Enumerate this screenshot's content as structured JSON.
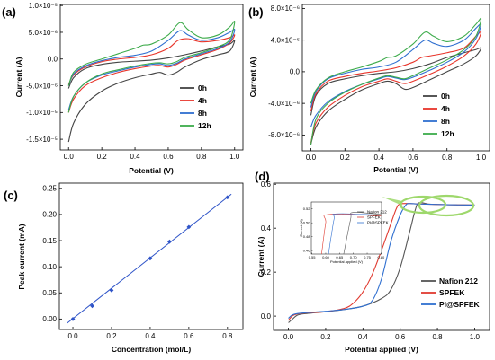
{
  "panels": [
    {
      "id": "a",
      "tag": "(a)",
      "chart_data": {
        "type": "line",
        "title": "",
        "xlabel": "Potential (V)",
        "ylabel": "Current (A)",
        "xlim": [
          -0.05,
          1.05
        ],
        "ylim": [
          -1.7e-05,
          1.02e-05
        ],
        "xticks": [
          0.0,
          0.2,
          0.4,
          0.6,
          0.8,
          1.0
        ],
        "xtick_labels": [
          "0.0",
          "0.2",
          "0.4",
          "0.6",
          "0.8",
          "1.0"
        ],
        "yticks": [
          -1.5e-05,
          -1e-05,
          -5e-06,
          0.0,
          5e-06,
          1e-05
        ],
        "ytick_labels": [
          "-1.5×10⁻⁵",
          "-1.0×10⁻⁵",
          "-5.0×10⁻⁶",
          "0.0",
          "5.0×10⁻⁶",
          "1.0×10⁻⁵"
        ],
        "legend_position": "lower-right",
        "series": [
          {
            "name": "0h",
            "color": "#444444",
            "x": [
              0.0,
              0.03,
              0.1,
              0.2,
              0.3,
              0.4,
              0.5,
              0.55,
              0.6,
              0.65,
              0.7,
              0.8,
              0.9,
              0.97,
              1.0,
              0.97,
              0.9,
              0.8,
              0.7,
              0.6,
              0.5,
              0.4,
              0.3,
              0.2,
              0.1,
              0.03,
              0.0
            ],
            "y": [
              -1.55e-05,
              -1.2e-05,
              -8.5e-06,
              -6e-06,
              -4.5e-06,
              -3.5e-06,
              -2.8e-06,
              -2.5e-06,
              -3e-06,
              -2.5e-06,
              -1.5e-06,
              -1e-07,
              8e-07,
              1.5e-06,
              3.5e-06,
              2.8e-06,
              2.3e-06,
              1.5e-06,
              8e-07,
              2e-07,
              -2e-07,
              -4e-07,
              -6e-07,
              -1e-06,
              -1.8e-06,
              -3.5e-06,
              -5.5e-06
            ]
          },
          {
            "name": "4h",
            "color": "#e8352b",
            "x": [
              0.0,
              0.03,
              0.1,
              0.2,
              0.3,
              0.4,
              0.5,
              0.55,
              0.6,
              0.65,
              0.7,
              0.8,
              0.9,
              0.97,
              1.0,
              0.97,
              0.9,
              0.8,
              0.72,
              0.66,
              0.6,
              0.5,
              0.4,
              0.3,
              0.2,
              0.1,
              0.03,
              0.0
            ],
            "y": [
              -1e-05,
              -7.5e-06,
              -5e-06,
              -3.5e-06,
              -2.5e-06,
              -1.8e-06,
              -1.3e-06,
              -1.2e-06,
              -1.5e-06,
              -1e-06,
              -2e-07,
              8e-07,
              1.8e-06,
              3e-06,
              4.5e-06,
              4e-06,
              3.5e-06,
              3.2e-06,
              3.8e-06,
              3.5e-06,
              2e-06,
              8e-07,
              3e-07,
              0.0,
              -5e-07,
              -1.5e-06,
              -3e-06,
              -4.8e-06
            ]
          },
          {
            "name": "8h",
            "color": "#2f6fd0",
            "x": [
              0.0,
              0.03,
              0.1,
              0.2,
              0.3,
              0.4,
              0.5,
              0.55,
              0.6,
              0.65,
              0.7,
              0.8,
              0.9,
              0.97,
              1.0,
              0.97,
              0.9,
              0.8,
              0.72,
              0.67,
              0.6,
              0.5,
              0.4,
              0.3,
              0.2,
              0.1,
              0.03,
              0.0
            ],
            "y": [
              -9.5e-06,
              -7e-06,
              -4.5e-06,
              -3e-06,
              -2.2e-06,
              -1.5e-06,
              -1e-06,
              -9e-07,
              -1.2e-06,
              -8e-07,
              0.0,
              1e-06,
              2e-06,
              3.2e-06,
              5.5e-06,
              5e-06,
              4e-06,
              3.5e-06,
              4.5e-06,
              5.3e-06,
              3.5e-06,
              1.5e-06,
              7e-07,
              3e-07,
              -3e-07,
              -1.3e-06,
              -2.8e-06,
              -5e-06
            ]
          },
          {
            "name": "12h",
            "color": "#3dab4b",
            "x": [
              0.0,
              0.03,
              0.1,
              0.2,
              0.3,
              0.4,
              0.5,
              0.55,
              0.6,
              0.65,
              0.7,
              0.8,
              0.9,
              0.97,
              1.0,
              0.97,
              0.9,
              0.8,
              0.72,
              0.67,
              0.6,
              0.5,
              0.45,
              0.4,
              0.3,
              0.2,
              0.1,
              0.03,
              0.0
            ],
            "y": [
              -1e-05,
              -7e-06,
              -4.5e-06,
              -2.8e-06,
              -2e-06,
              -1.3e-06,
              -8e-07,
              -7e-07,
              -9e-07,
              -5e-07,
              3e-07,
              1.2e-06,
              2.3e-06,
              3.6e-06,
              7e-06,
              6e-06,
              4.5e-06,
              4e-06,
              5.5e-06,
              6.8e-06,
              4.5e-06,
              2.8e-06,
              2.6e-06,
              2e-06,
              1e-06,
              0.0,
              -1e-06,
              -2.5e-06,
              -5e-06
            ]
          }
        ]
      }
    },
    {
      "id": "b",
      "tag": "(b)",
      "chart_data": {
        "type": "line",
        "title": "",
        "xlabel": "Potential (V)",
        "ylabel": "Current (A)",
        "xlim": [
          -0.05,
          1.05
        ],
        "ylim": [
          -1e-05,
          8.5e-06
        ],
        "xticks": [
          0.0,
          0.2,
          0.4,
          0.6,
          0.8,
          1.0
        ],
        "xtick_labels": [
          "0.0",
          "0.2",
          "0.4",
          "0.6",
          "0.8",
          "1.0"
        ],
        "yticks": [
          -8e-06,
          -4e-06,
          0.0,
          4e-06,
          8e-06
        ],
        "ytick_labels": [
          "-8.0×10⁻⁶",
          "-4.0×10⁻⁶",
          "0.0",
          "4.0×10⁻⁶",
          "8.0×10⁻⁶"
        ],
        "legend_position": "lower-right",
        "series": [
          {
            "name": "0h",
            "color": "#444444",
            "x": [
              0.0,
              0.03,
              0.1,
              0.2,
              0.3,
              0.4,
              0.45,
              0.5,
              0.55,
              0.6,
              0.7,
              0.8,
              0.9,
              0.97,
              1.0,
              0.97,
              0.9,
              0.8,
              0.7,
              0.6,
              0.5,
              0.4,
              0.3,
              0.2,
              0.1,
              0.03,
              0.0
            ],
            "y": [
              -9.2e-06,
              -7e-06,
              -5e-06,
              -3.5e-06,
              -2.3e-06,
              -1.5e-06,
              -1.2e-06,
              -1.5e-06,
              -2.2e-06,
              -2e-06,
              -1e-06,
              0.0,
              1e-06,
              2e-06,
              3e-06,
              2.8e-06,
              2.4e-06,
              1.8e-06,
              1e-06,
              4e-07,
              0.0,
              -2e-07,
              -5e-07,
              -9e-07,
              -1.5e-06,
              -3e-06,
              -5.5e-06
            ]
          },
          {
            "name": "4h",
            "color": "#e8352b",
            "x": [
              0.0,
              0.03,
              0.1,
              0.2,
              0.3,
              0.4,
              0.45,
              0.5,
              0.55,
              0.6,
              0.7,
              0.8,
              0.9,
              0.97,
              1.0,
              0.97,
              0.9,
              0.8,
              0.7,
              0.65,
              0.6,
              0.5,
              0.4,
              0.3,
              0.2,
              0.1,
              0.03,
              0.0
            ],
            "y": [
              -9e-06,
              -6.5e-06,
              -4.5e-06,
              -3e-06,
              -1.9e-06,
              -1.2e-06,
              -9e-07,
              -1.2e-06,
              -1.5e-06,
              -1.2e-06,
              -3e-07,
              7e-07,
              2e-06,
              3.5e-06,
              5e-06,
              4.5e-06,
              3e-06,
              2.4e-06,
              2e-06,
              1.8e-06,
              1.2e-06,
              5e-07,
              1e-07,
              -2e-07,
              -6e-07,
              -1.2e-06,
              -2.8e-06,
              -5e-06
            ]
          },
          {
            "name": "8h",
            "color": "#2f6fd0",
            "x": [
              0.0,
              0.03,
              0.1,
              0.2,
              0.3,
              0.4,
              0.45,
              0.5,
              0.55,
              0.6,
              0.7,
              0.8,
              0.9,
              0.97,
              1.0,
              0.97,
              0.9,
              0.8,
              0.72,
              0.67,
              0.6,
              0.5,
              0.4,
              0.3,
              0.2,
              0.1,
              0.03,
              0.0
            ],
            "y": [
              -7e-06,
              -5.5e-06,
              -3.8e-06,
              -2.5e-06,
              -1.6e-06,
              -9e-07,
              -6e-07,
              -8e-07,
              -1e-06,
              -7e-07,
              2e-07,
              1.2e-06,
              2.5e-06,
              4.2e-06,
              6e-06,
              5.5e-06,
              4e-06,
              3.2e-06,
              3.6e-06,
              4e-06,
              2.8e-06,
              1.2e-06,
              6e-07,
              3e-07,
              -2e-07,
              -9e-07,
              -2.5e-06,
              -4.5e-06
            ]
          },
          {
            "name": "12h",
            "color": "#3dab4b",
            "x": [
              0.0,
              0.03,
              0.1,
              0.2,
              0.3,
              0.4,
              0.45,
              0.5,
              0.55,
              0.6,
              0.7,
              0.8,
              0.9,
              0.97,
              1.0,
              0.97,
              0.9,
              0.8,
              0.72,
              0.67,
              0.6,
              0.5,
              0.45,
              0.4,
              0.3,
              0.2,
              0.1,
              0.03,
              0.0
            ],
            "y": [
              -9.2e-06,
              -6e-06,
              -4e-06,
              -2.6e-06,
              -1.6e-06,
              -8e-07,
              -5e-07,
              -7e-07,
              -9e-07,
              -5e-07,
              5e-07,
              1.5e-06,
              2.8e-06,
              4.5e-06,
              6.7e-06,
              6e-06,
              4.5e-06,
              3.8e-06,
              4.5e-06,
              5e-06,
              3.5e-06,
              2e-06,
              1.8e-06,
              1.3e-06,
              6e-07,
              0.0,
              -8e-07,
              -2.3e-06,
              -4e-06
            ]
          }
        ]
      }
    },
    {
      "id": "c",
      "tag": "(c)",
      "chart_data": {
        "type": "scatter",
        "title": "",
        "xlabel": "Concentration (mol/L)",
        "ylabel": "Peak current (mA)",
        "xlim": [
          -0.07,
          0.88
        ],
        "ylim": [
          -0.02,
          0.26
        ],
        "xticks": [
          0.0,
          0.2,
          0.4,
          0.6,
          0.8
        ],
        "xtick_labels": [
          "0.0",
          "0.2",
          "0.4",
          "0.6",
          "0.8"
        ],
        "yticks": [
          0.0,
          0.05,
          0.1,
          0.15,
          0.2,
          0.25
        ],
        "ytick_labels": [
          "0.00",
          "0.05",
          "0.10",
          "0.15",
          "0.20",
          "0.25"
        ],
        "series": [
          {
            "color": "#2f54c8",
            "x": [
              0.0,
              0.1,
              0.2,
              0.4,
              0.5,
              0.6,
              0.8
            ],
            "y": [
              0.0,
              0.025,
              0.055,
              0.116,
              0.148,
              0.176,
              0.233
            ]
          }
        ],
        "fit_line": {
          "color": "#2f54c8",
          "x": [
            -0.03,
            0.82
          ],
          "y": [
            -0.008,
            0.239
          ]
        }
      }
    },
    {
      "id": "d",
      "tag": "(d)",
      "chart_data": {
        "type": "line",
        "title": "",
        "xlabel": "Potential applied (V)",
        "ylabel": "Current (A)",
        "xlim": [
          -0.08,
          1.08
        ],
        "ylim": [
          -0.065,
          0.605
        ],
        "xticks": [
          0.0,
          0.2,
          0.4,
          0.6,
          0.8,
          1.0
        ],
        "xtick_labels": [
          "0.0",
          "0.2",
          "0.4",
          "0.6",
          "0.8",
          "1.0"
        ],
        "yticks": [
          0.0,
          0.2,
          0.4,
          0.6
        ],
        "ytick_labels": [
          "0.0",
          "0.2",
          "0.4",
          "0.6"
        ],
        "legend_position": "lower-right",
        "series": [
          {
            "name": "Nafion 212",
            "color": "#555555",
            "x": [
              0.0,
              0.02,
              0.05,
              0.1,
              0.2,
              0.3,
              0.4,
              0.5,
              0.55,
              0.6,
              0.65,
              0.68,
              0.7,
              0.75,
              0.8,
              0.9,
              1.0
            ],
            "y": [
              -0.03,
              -0.015,
              0.005,
              0.012,
              0.02,
              0.03,
              0.045,
              0.08,
              0.12,
              0.22,
              0.38,
              0.48,
              0.515,
              0.51,
              0.508,
              0.506,
              0.505
            ]
          },
          {
            "name": "SPFEK",
            "color": "#e03a30",
            "x": [
              0.0,
              0.02,
              0.05,
              0.1,
              0.2,
              0.3,
              0.35,
              0.4,
              0.45,
              0.5,
              0.55,
              0.58,
              0.6,
              0.65,
              0.7,
              0.8,
              0.9,
              1.0
            ],
            "y": [
              -0.02,
              0.0,
              0.01,
              0.015,
              0.02,
              0.035,
              0.06,
              0.11,
              0.19,
              0.3,
              0.42,
              0.49,
              0.51,
              0.512,
              0.51,
              0.508,
              0.506,
              0.505
            ]
          },
          {
            "name": "PI@SPFEK",
            "color": "#2f6fd0",
            "x": [
              0.0,
              0.02,
              0.05,
              0.1,
              0.2,
              0.3,
              0.4,
              0.45,
              0.5,
              0.55,
              0.6,
              0.63,
              0.65,
              0.7,
              0.8,
              0.9,
              1.0
            ],
            "y": [
              -0.01,
              0.005,
              0.012,
              0.016,
              0.022,
              0.03,
              0.045,
              0.07,
              0.17,
              0.34,
              0.46,
              0.505,
              0.512,
              0.51,
              0.508,
              0.506,
              0.505
            ]
          }
        ],
        "inset": {
          "xlabel": "Potential applied (V)",
          "ylabel": "Current (A)",
          "xlim": [
            0.548,
            0.802
          ],
          "ylim": [
            0.455,
            0.53
          ],
          "xticks": [
            0.55,
            0.6,
            0.65,
            0.7,
            0.75,
            0.8
          ],
          "xtick_labels": [
            "0.55",
            "0.60",
            "0.65",
            "0.70",
            "0.75",
            "0.80"
          ],
          "yticks": [
            0.46,
            0.48,
            0.5,
            0.52
          ],
          "ytick_labels": [
            "0.46",
            "0.48",
            "0.50",
            "0.52"
          ],
          "legend_position": "upper-right",
          "series": [
            {
              "name": "Nafion 212",
              "color": "#555555",
              "x": [
                0.665,
                0.69,
                0.7,
                0.8
              ],
              "y": [
                0.455,
                0.505,
                0.515,
                0.512
              ]
            },
            {
              "name": "SPFEK",
              "color": "#e03a30",
              "x": [
                0.585,
                0.6,
                0.61,
                0.8
              ],
              "y": [
                0.455,
                0.5,
                0.512,
                0.51
              ]
            },
            {
              "name": "PI@SPFEK",
              "color": "#2f6fd0",
              "x": [
                0.61,
                0.63,
                0.64,
                0.8
              ],
              "y": [
                0.455,
                0.505,
                0.513,
                0.511
              ]
            }
          ]
        },
        "highlight_color": "#9ed86c"
      }
    }
  ]
}
